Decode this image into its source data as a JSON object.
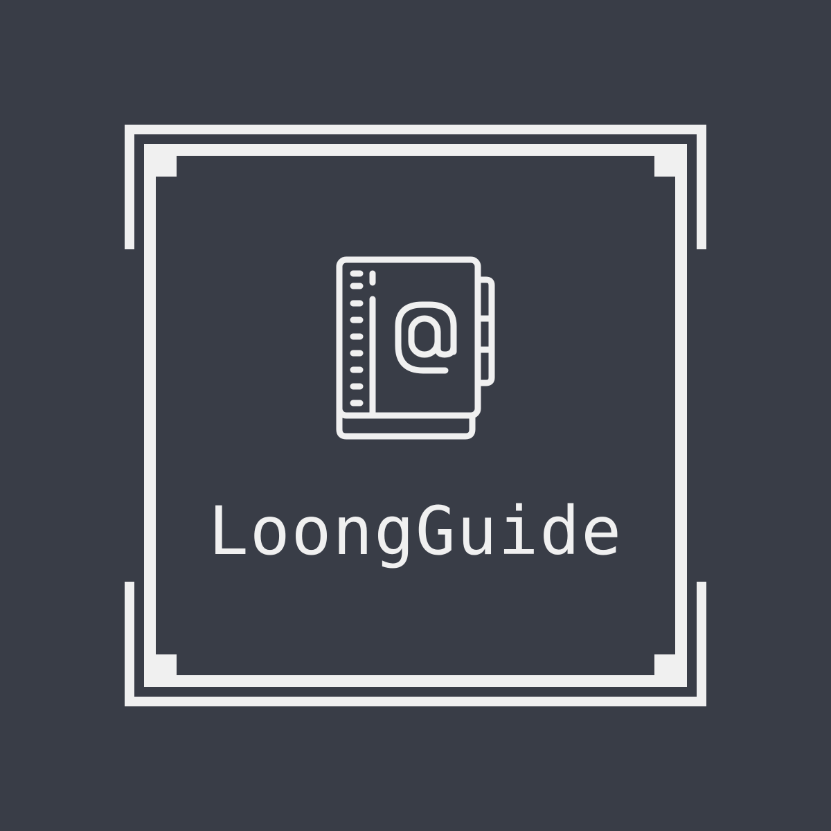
{
  "logo": {
    "brand_name": "LoongGuide",
    "icon": "address-book-at-icon",
    "background_color": "#393d47",
    "foreground_color": "#f0f0f0"
  }
}
